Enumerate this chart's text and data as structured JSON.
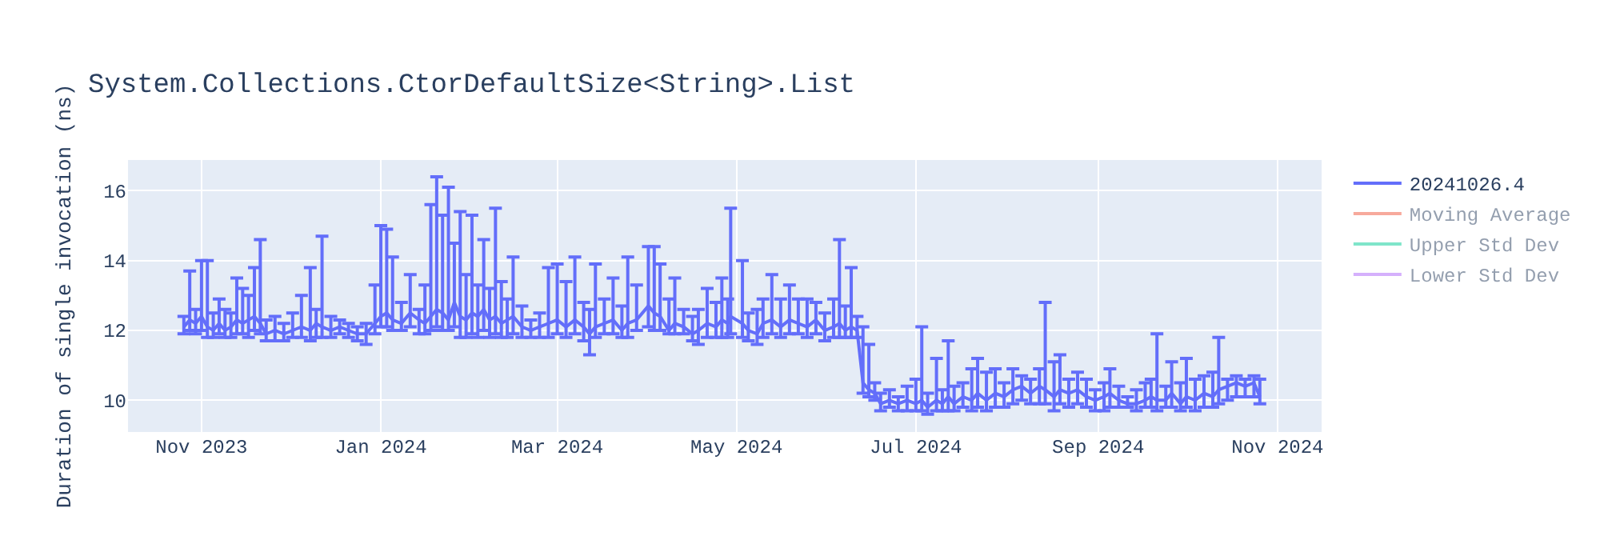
{
  "chart_data": {
    "type": "line",
    "title": "System.Collections.CtorDefaultSize<String>.List",
    "ylabel": "Duration of single invocation (ns)",
    "xlim": [
      "2023-10-07",
      "2024-11-16"
    ],
    "xticks": [
      {
        "value": "2023-11-01",
        "label": "Nov 2023"
      },
      {
        "value": "2024-01-01",
        "label": "Jan 2024"
      },
      {
        "value": "2024-03-01",
        "label": "Mar 2024"
      },
      {
        "value": "2024-05-01",
        "label": "May 2024"
      },
      {
        "value": "2024-07-01",
        "label": "Jul 2024"
      },
      {
        "value": "2024-09-01",
        "label": "Sep 2024"
      },
      {
        "value": "2024-11-01",
        "label": "Nov 2024"
      }
    ],
    "ylim": [
      9.09,
      16.88
    ],
    "yticks": [
      10,
      12,
      14,
      16
    ],
    "grid": true,
    "legend": "top right",
    "marker": "none",
    "line_style": "solid",
    "x": [
      "2023-10-26",
      "2023-10-28",
      "2023-10-30",
      "2023-11-01",
      "2023-11-03",
      "2023-11-05",
      "2023-11-07",
      "2023-11-09",
      "2023-11-11",
      "2023-11-13",
      "2023-11-15",
      "2023-11-17",
      "2023-11-19",
      "2023-11-21",
      "2023-11-23",
      "2023-11-26",
      "2023-11-29",
      "2023-12-02",
      "2023-12-05",
      "2023-12-08",
      "2023-12-10",
      "2023-12-12",
      "2023-12-15",
      "2023-12-18",
      "2023-12-21",
      "2023-12-24",
      "2023-12-27",
      "2023-12-30",
      "2024-01-01",
      "2024-01-03",
      "2024-01-05",
      "2024-01-08",
      "2024-01-11",
      "2024-01-14",
      "2024-01-16",
      "2024-01-18",
      "2024-01-20",
      "2024-01-22",
      "2024-01-24",
      "2024-01-26",
      "2024-01-28",
      "2024-01-30",
      "2024-02-01",
      "2024-02-03",
      "2024-02-05",
      "2024-02-07",
      "2024-02-09",
      "2024-02-11",
      "2024-02-13",
      "2024-02-15",
      "2024-02-18",
      "2024-02-21",
      "2024-02-24",
      "2024-02-27",
      "2024-03-01",
      "2024-03-04",
      "2024-03-07",
      "2024-03-10",
      "2024-03-12",
      "2024-03-14",
      "2024-03-17",
      "2024-03-20",
      "2024-03-23",
      "2024-03-25",
      "2024-03-28",
      "2024-04-01",
      "2024-04-03",
      "2024-04-05",
      "2024-04-08",
      "2024-04-10",
      "2024-04-13",
      "2024-04-16",
      "2024-04-18",
      "2024-04-21",
      "2024-04-24",
      "2024-04-26",
      "2024-04-28",
      "2024-04-29",
      "2024-05-03",
      "2024-05-05",
      "2024-05-08",
      "2024-05-10",
      "2024-05-13",
      "2024-05-16",
      "2024-05-19",
      "2024-05-22",
      "2024-05-25",
      "2024-05-28",
      "2024-05-31",
      "2024-06-03",
      "2024-06-05",
      "2024-06-07",
      "2024-06-09",
      "2024-06-11",
      "2024-06-13",
      "2024-06-15",
      "2024-06-17",
      "2024-06-19",
      "2024-06-22",
      "2024-06-25",
      "2024-06-28",
      "2024-07-01",
      "2024-07-03",
      "2024-07-05",
      "2024-07-08",
      "2024-07-10",
      "2024-07-12",
      "2024-07-14",
      "2024-07-17",
      "2024-07-20",
      "2024-07-22",
      "2024-07-25",
      "2024-07-28",
      "2024-07-31",
      "2024-08-03",
      "2024-08-06",
      "2024-08-09",
      "2024-08-12",
      "2024-08-14",
      "2024-08-17",
      "2024-08-19",
      "2024-08-22",
      "2024-08-25",
      "2024-08-28",
      "2024-08-31",
      "2024-09-03",
      "2024-09-05",
      "2024-09-08",
      "2024-09-11",
      "2024-09-14",
      "2024-09-17",
      "2024-09-19",
      "2024-09-21",
      "2024-09-24",
      "2024-09-26",
      "2024-09-29",
      "2024-10-01",
      "2024-10-04",
      "2024-10-07",
      "2024-10-10",
      "2024-10-12",
      "2024-10-15",
      "2024-10-18",
      "2024-10-21",
      "2024-10-24",
      "2024-10-26"
    ],
    "series": [
      {
        "name": "20241026.4",
        "color": "#636efa",
        "values": [
          12.1,
          12.3,
          12.2,
          12.4,
          12.1,
          12.0,
          12.2,
          12.0,
          12.1,
          12.3,
          12.2,
          12.3,
          12.4,
          12.2,
          11.9,
          12.0,
          11.9,
          12.0,
          12.1,
          12.0,
          12.2,
          12.1,
          12.0,
          12.1,
          12.0,
          11.9,
          11.9,
          12.2,
          12.4,
          12.5,
          12.3,
          12.2,
          12.5,
          12.3,
          12.2,
          12.4,
          12.6,
          12.5,
          12.3,
          12.8,
          12.4,
          12.3,
          12.5,
          12.4,
          12.6,
          12.3,
          12.4,
          12.2,
          12.3,
          12.4,
          12.1,
          12.0,
          12.1,
          12.2,
          12.3,
          12.1,
          12.3,
          12.1,
          11.9,
          12.1,
          12.2,
          12.3,
          12.0,
          12.2,
          12.3,
          12.7,
          12.5,
          12.4,
          12.0,
          12.2,
          12.1,
          11.9,
          12.0,
          12.2,
          12.1,
          12.3,
          12.2,
          12.4,
          12.2,
          12.0,
          11.9,
          12.2,
          12.3,
          12.1,
          12.3,
          12.2,
          12.1,
          12.3,
          12.0,
          12.1,
          12.2,
          12.0,
          12.1,
          12.0,
          10.5,
          10.3,
          10.2,
          9.9,
          10.0,
          9.9,
          10.0,
          9.9,
          10.0,
          9.8,
          10.0,
          9.9,
          10.1,
          9.9,
          10.1,
          10.0,
          10.2,
          10.0,
          10.2,
          10.1,
          10.3,
          10.4,
          10.2,
          10.4,
          10.3,
          10.1,
          10.3,
          10.2,
          10.3,
          10.1,
          10.0,
          10.1,
          10.2,
          10.0,
          9.9,
          9.9,
          10.0,
          10.1,
          10.0,
          10.0,
          10.2,
          9.9,
          10.1,
          10.0,
          10.2,
          10.1,
          10.3,
          10.4,
          10.5,
          10.4,
          10.5,
          10.1
        ],
        "errors": [
          [
            11.9,
            12.4
          ],
          [
            12.0,
            13.7
          ],
          [
            11.9,
            12.6
          ],
          [
            12.0,
            14.0
          ],
          [
            11.8,
            14.0
          ],
          [
            11.8,
            12.5
          ],
          [
            11.9,
            12.9
          ],
          [
            11.8,
            12.6
          ],
          [
            11.8,
            12.5
          ],
          [
            11.9,
            13.5
          ],
          [
            11.9,
            13.2
          ],
          [
            11.8,
            13.0
          ],
          [
            12.0,
            13.8
          ],
          [
            11.9,
            14.6
          ],
          [
            11.7,
            12.3
          ],
          [
            11.7,
            12.4
          ],
          [
            11.7,
            12.2
          ],
          [
            11.8,
            12.5
          ],
          [
            11.8,
            13.0
          ],
          [
            11.7,
            13.8
          ],
          [
            11.8,
            12.6
          ],
          [
            11.8,
            14.7
          ],
          [
            11.8,
            12.4
          ],
          [
            11.9,
            12.3
          ],
          [
            11.8,
            12.2
          ],
          [
            11.7,
            12.1
          ],
          [
            11.6,
            12.2
          ],
          [
            11.9,
            13.3
          ],
          [
            12.1,
            15.0
          ],
          [
            12.1,
            14.9
          ],
          [
            12.0,
            14.1
          ],
          [
            12.0,
            12.8
          ],
          [
            12.1,
            13.6
          ],
          [
            11.9,
            12.6
          ],
          [
            11.9,
            13.3
          ],
          [
            12.0,
            15.6
          ],
          [
            12.1,
            16.4
          ],
          [
            12.0,
            15.3
          ],
          [
            12.0,
            16.1
          ],
          [
            12.1,
            14.5
          ],
          [
            11.8,
            15.4
          ],
          [
            11.8,
            13.6
          ],
          [
            11.9,
            15.3
          ],
          [
            11.8,
            13.3
          ],
          [
            12.0,
            14.6
          ],
          [
            11.8,
            13.2
          ],
          [
            11.9,
            15.5
          ],
          [
            11.8,
            13.4
          ],
          [
            11.8,
            12.9
          ],
          [
            11.9,
            14.1
          ],
          [
            11.8,
            12.7
          ],
          [
            11.8,
            12.3
          ],
          [
            11.8,
            12.5
          ],
          [
            11.8,
            13.8
          ],
          [
            11.9,
            13.9
          ],
          [
            11.8,
            13.4
          ],
          [
            11.9,
            14.1
          ],
          [
            11.7,
            12.8
          ],
          [
            11.3,
            12.6
          ],
          [
            11.8,
            13.9
          ],
          [
            11.9,
            12.9
          ],
          [
            11.9,
            13.5
          ],
          [
            11.8,
            12.7
          ],
          [
            11.8,
            14.1
          ],
          [
            12.0,
            13.3
          ],
          [
            12.1,
            14.4
          ],
          [
            12.0,
            14.4
          ],
          [
            12.0,
            13.9
          ],
          [
            11.9,
            12.9
          ],
          [
            11.9,
            13.5
          ],
          [
            11.9,
            12.6
          ],
          [
            11.7,
            12.4
          ],
          [
            11.6,
            12.6
          ],
          [
            11.8,
            13.2
          ],
          [
            11.8,
            12.8
          ],
          [
            11.8,
            13.5
          ],
          [
            11.8,
            12.9
          ],
          [
            11.9,
            15.5
          ],
          [
            11.8,
            14.0
          ],
          [
            11.7,
            12.5
          ],
          [
            11.6,
            12.6
          ],
          [
            11.8,
            12.9
          ],
          [
            11.9,
            13.6
          ],
          [
            11.8,
            12.9
          ],
          [
            11.9,
            13.3
          ],
          [
            11.9,
            12.9
          ],
          [
            11.8,
            12.9
          ],
          [
            11.9,
            12.8
          ],
          [
            11.7,
            12.5
          ],
          [
            11.8,
            12.9
          ],
          [
            11.8,
            14.6
          ],
          [
            11.8,
            12.7
          ],
          [
            11.8,
            13.8
          ],
          [
            11.8,
            12.4
          ],
          [
            10.2,
            12.1
          ],
          [
            10.1,
            11.6
          ],
          [
            10.0,
            10.5
          ],
          [
            9.7,
            10.2
          ],
          [
            9.8,
            10.3
          ],
          [
            9.7,
            10.1
          ],
          [
            9.7,
            10.4
          ],
          [
            9.7,
            10.6
          ],
          [
            9.7,
            12.1
          ],
          [
            9.6,
            10.2
          ],
          [
            9.7,
            11.2
          ],
          [
            9.7,
            10.3
          ],
          [
            9.7,
            11.7
          ],
          [
            9.7,
            10.4
          ],
          [
            9.8,
            10.5
          ],
          [
            9.7,
            10.9
          ],
          [
            9.8,
            11.2
          ],
          [
            9.7,
            10.8
          ],
          [
            9.8,
            10.9
          ],
          [
            9.8,
            10.5
          ],
          [
            9.9,
            10.9
          ],
          [
            10.0,
            10.7
          ],
          [
            9.9,
            10.6
          ],
          [
            9.9,
            10.9
          ],
          [
            9.9,
            12.8
          ],
          [
            9.7,
            11.1
          ],
          [
            9.9,
            11.3
          ],
          [
            9.8,
            10.6
          ],
          [
            9.9,
            10.8
          ],
          [
            9.8,
            10.6
          ],
          [
            9.7,
            10.3
          ],
          [
            9.7,
            10.5
          ],
          [
            9.8,
            10.9
          ],
          [
            9.8,
            10.4
          ],
          [
            9.8,
            10.1
          ],
          [
            9.7,
            10.3
          ],
          [
            9.8,
            10.5
          ],
          [
            9.8,
            10.6
          ],
          [
            9.7,
            11.9
          ],
          [
            9.8,
            10.4
          ],
          [
            9.8,
            11.1
          ],
          [
            9.7,
            10.5
          ],
          [
            9.8,
            11.2
          ],
          [
            9.7,
            10.6
          ],
          [
            9.8,
            10.7
          ],
          [
            9.8,
            10.8
          ],
          [
            9.9,
            11.8
          ],
          [
            10.0,
            10.6
          ],
          [
            10.1,
            10.7
          ],
          [
            10.1,
            10.6
          ],
          [
            10.1,
            10.7
          ],
          [
            9.9,
            10.6
          ]
        ]
      },
      {
        "name": "Moving Average",
        "color": "#ef553b",
        "values": [
          null,
          null,
          null,
          null,
          null,
          null,
          null,
          null,
          null,
          null,
          null,
          null,
          null,
          null,
          null,
          null,
          null,
          null,
          null,
          null,
          null,
          null,
          null,
          null,
          null,
          null,
          null,
          null,
          null,
          null,
          null,
          null,
          null,
          null,
          null,
          null,
          null,
          null,
          null,
          null,
          null,
          null,
          null,
          null,
          null,
          null,
          null,
          null,
          null,
          null,
          null,
          null,
          null,
          null,
          null,
          null,
          null,
          null,
          null,
          null,
          null,
          null,
          null,
          null,
          null,
          null,
          null,
          null,
          null,
          null,
          null,
          null,
          null,
          null,
          null,
          null,
          null,
          null,
          null,
          null,
          null,
          null,
          null,
          null,
          null,
          null,
          null,
          null,
          null,
          null,
          null,
          null,
          null,
          null,
          null,
          null,
          null,
          null,
          null,
          null,
          null,
          null,
          null,
          null,
          null,
          null,
          null,
          null,
          null,
          null,
          null,
          null,
          null,
          null,
          null,
          null,
          null,
          null,
          null,
          null,
          null,
          null,
          null,
          null,
          null,
          null,
          null,
          null,
          null,
          null,
          null,
          null,
          null,
          null,
          null,
          null,
          null,
          null,
          null,
          null,
          null,
          null,
          null,
          null,
          null,
          null
        ]
      },
      {
        "name": "Upper Std Dev",
        "color": "#00cc96",
        "values": [
          null,
          null,
          null,
          null,
          null,
          null,
          null,
          null,
          null,
          null,
          null,
          null,
          null,
          null,
          null,
          null,
          null,
          null,
          null,
          null,
          null,
          null,
          null,
          null,
          null,
          null,
          null,
          null,
          null,
          null,
          null,
          null,
          null,
          null,
          null,
          null,
          null,
          null,
          null,
          null,
          null,
          null,
          null,
          null,
          null,
          null,
          null,
          null,
          null,
          null,
          null,
          null,
          null,
          null,
          null,
          null,
          null,
          null,
          null,
          null,
          null,
          null,
          null,
          null,
          null,
          null,
          null,
          null,
          null,
          null,
          null,
          null,
          null,
          null,
          null,
          null,
          null,
          null,
          null,
          null,
          null,
          null,
          null,
          null,
          null,
          null,
          null,
          null,
          null,
          null,
          null,
          null,
          null,
          null,
          null,
          null,
          null,
          null,
          null,
          null,
          null,
          null,
          null,
          null,
          null,
          null,
          null,
          null,
          null,
          null,
          null,
          null,
          null,
          null,
          null,
          null,
          null,
          null,
          null,
          null,
          null,
          null,
          null,
          null,
          null,
          null,
          null,
          null,
          null,
          null,
          null,
          null,
          null,
          null,
          null,
          null,
          null,
          null,
          null,
          null,
          null,
          null,
          null,
          null,
          null,
          null
        ]
      },
      {
        "name": "Lower Std Dev",
        "color": "#ab63fa",
        "values": [
          null,
          null,
          null,
          null,
          null,
          null,
          null,
          null,
          null,
          null,
          null,
          null,
          null,
          null,
          null,
          null,
          null,
          null,
          null,
          null,
          null,
          null,
          null,
          null,
          null,
          null,
          null,
          null,
          null,
          null,
          null,
          null,
          null,
          null,
          null,
          null,
          null,
          null,
          null,
          null,
          null,
          null,
          null,
          null,
          null,
          null,
          null,
          null,
          null,
          null,
          null,
          null,
          null,
          null,
          null,
          null,
          null,
          null,
          null,
          null,
          null,
          null,
          null,
          null,
          null,
          null,
          null,
          null,
          null,
          null,
          null,
          null,
          null,
          null,
          null,
          null,
          null,
          null,
          null,
          null,
          null,
          null,
          null,
          null,
          null,
          null,
          null,
          null,
          null,
          null,
          null,
          null,
          null,
          null,
          null,
          null,
          null,
          null,
          null,
          null,
          null,
          null,
          null,
          null,
          null,
          null,
          null,
          null,
          null,
          null,
          null,
          null,
          null,
          null,
          null,
          null,
          null,
          null,
          null,
          null,
          null,
          null,
          null,
          null,
          null,
          null,
          null,
          null,
          null,
          null,
          null,
          null,
          null,
          null,
          null,
          null,
          null,
          null,
          null,
          null,
          null,
          null,
          null,
          null,
          null,
          null
        ]
      }
    ]
  }
}
